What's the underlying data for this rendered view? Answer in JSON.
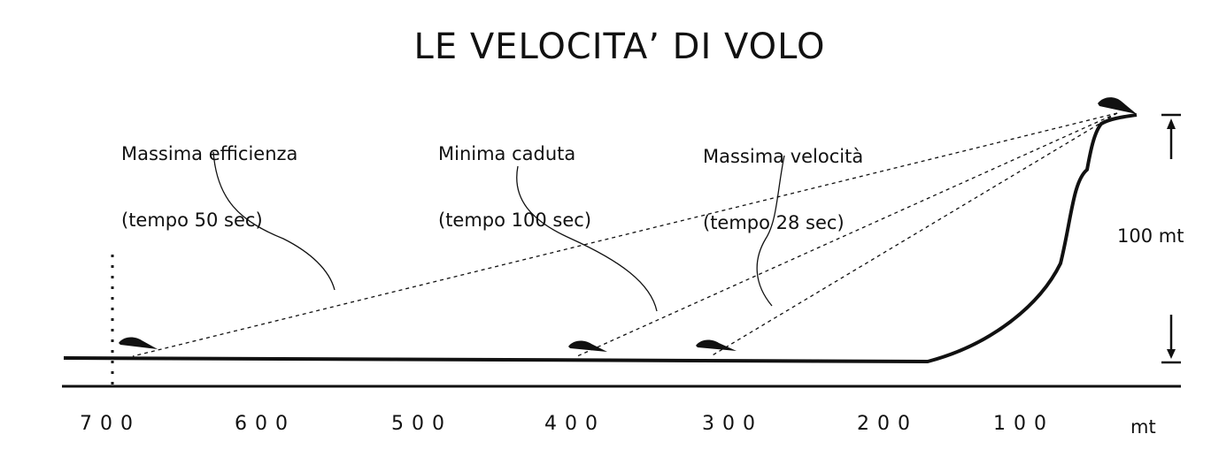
{
  "title": "LE VELOCITA’ DI VOLO",
  "callouts": [
    {
      "line1": "Massima efficienza",
      "line2": "(tempo 50 sec)"
    },
    {
      "line1": "Minima caduta",
      "line2": "(tempo 100 sec)"
    },
    {
      "line1": "Massima velocità",
      "line2": "(tempo 28 sec)"
    }
  ],
  "axis": {
    "ticks": [
      "700",
      "600",
      "500",
      "400",
      "300",
      "200",
      "100"
    ],
    "unit": "mt"
  },
  "height_label": "100 mt",
  "icons": {
    "glider": "glider-icon",
    "up_arrow": "arrow-up-icon",
    "down_arrow": "arrow-down-icon"
  }
}
